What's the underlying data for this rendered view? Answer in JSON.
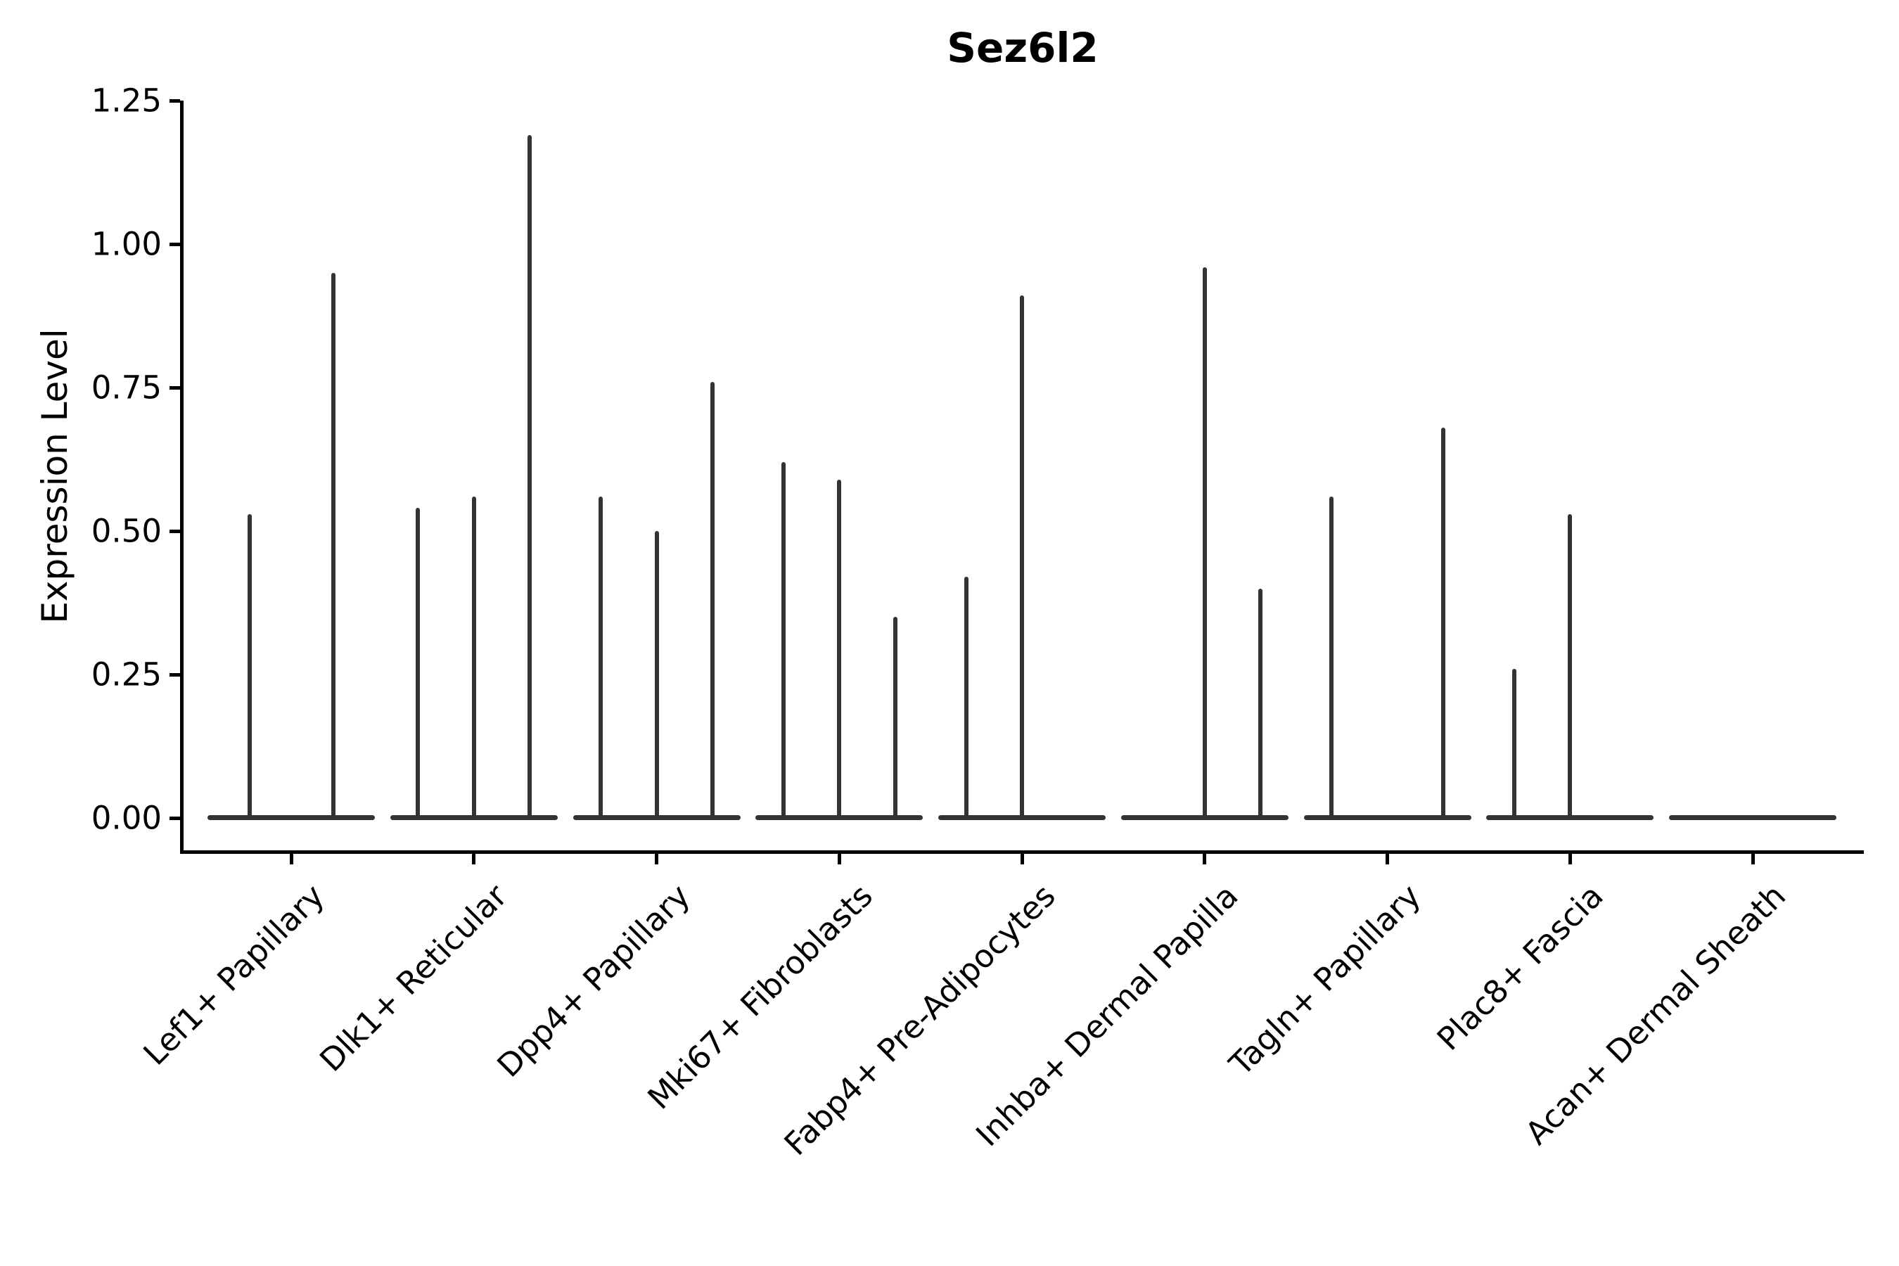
{
  "title": "Sez6l2",
  "colors": {
    "background": "#ffffff",
    "violin": "#333333",
    "axis": "#000000",
    "text": "#000000"
  },
  "chart_data": {
    "type": "violin",
    "title": "Sez6l2",
    "xlabel": "",
    "ylabel": "Expression Level",
    "ylim": [
      0,
      1.25
    ],
    "grid": false,
    "legend": null,
    "y_tick_values": [
      0,
      0.25,
      0.5,
      0.75,
      1.0,
      1.25
    ],
    "y_tick_labels": [
      "0.00",
      "0.25",
      "0.50",
      "0.75",
      "1.00",
      "1.25"
    ],
    "categories": [
      "Lef1+ Papillary",
      "Dlk1+ Reticular",
      "Dpp4+ Papillary",
      "Mki67+ Fibroblasts",
      "Fabp4+ Pre-Adipocytes",
      "Inhba+ Dermal Papilla",
      "Tagln+ Papillary",
      "Plac8+ Fascia",
      "Acan+ Dermal Sheath"
    ],
    "groups": [
      {
        "category": "Lef1+ Papillary",
        "violins": 2,
        "spikes": [
          {
            "violin": 0,
            "max": 0.53
          },
          {
            "violin": 1,
            "max": 0.95
          }
        ]
      },
      {
        "category": "Dlk1+ Reticular",
        "violins": 3,
        "spikes": [
          {
            "violin": 0,
            "max": 0.54
          },
          {
            "violin": 1,
            "max": 0.56
          },
          {
            "violin": 2,
            "max": 1.19
          }
        ]
      },
      {
        "category": "Dpp4+ Papillary",
        "violins": 3,
        "spikes": [
          {
            "violin": 0,
            "max": 0.56
          },
          {
            "violin": 1,
            "max": 0.5
          },
          {
            "violin": 2,
            "max": 0.76
          }
        ]
      },
      {
        "category": "Mki67+ Fibroblasts",
        "violins": 3,
        "spikes": [
          {
            "violin": 0,
            "max": 0.62
          },
          {
            "violin": 1,
            "max": 0.59
          },
          {
            "violin": 2,
            "max": 0.35
          }
        ]
      },
      {
        "category": "Fabp4+ Pre-Adipocytes",
        "violins": 3,
        "spikes": [
          {
            "violin": 0,
            "max": 0.42
          },
          {
            "violin": 1,
            "max": 0.91
          }
        ]
      },
      {
        "category": "Inhba+ Dermal Papilla",
        "violins": 3,
        "spikes": [
          {
            "violin": 1,
            "max": 0.96
          },
          {
            "violin": 2,
            "max": 0.4
          }
        ]
      },
      {
        "category": "Tagln+ Papillary",
        "violins": 3,
        "spikes": [
          {
            "violin": 0,
            "max": 0.56
          },
          {
            "violin": 2,
            "max": 0.68
          }
        ]
      },
      {
        "category": "Plac8+ Fascia",
        "violins": 3,
        "spikes": [
          {
            "violin": 0,
            "max": 0.26
          },
          {
            "violin": 1,
            "max": 0.53
          }
        ]
      },
      {
        "category": "Acan+ Dermal Sheath",
        "violins": 3,
        "spikes": []
      }
    ]
  }
}
